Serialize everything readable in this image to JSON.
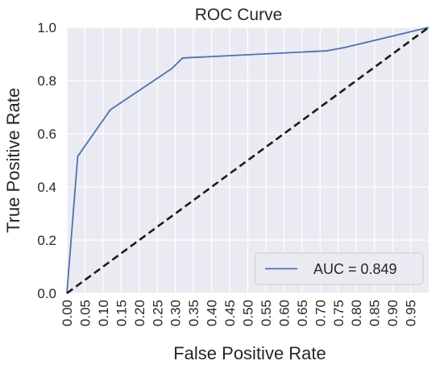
{
  "chart_data": {
    "type": "line",
    "title": "ROC Curve",
    "xlabel": "False Positive Rate",
    "ylabel": "True Positive Rate",
    "xlim": [
      0,
      1
    ],
    "ylim": [
      0,
      1
    ],
    "grid": true,
    "legend_position": "bottom-right",
    "x_ticks": [
      "0.00",
      "0.05",
      "0.10",
      "0.15",
      "0.20",
      "0.25",
      "0.30",
      "0.35",
      "0.40",
      "0.45",
      "0.50",
      "0.55",
      "0.60",
      "0.65",
      "0.70",
      "0.75",
      "0.80",
      "0.85",
      "0.90",
      "0.95"
    ],
    "y_ticks": [
      "0.0",
      "0.2",
      "0.4",
      "0.6",
      "0.8",
      "1.0"
    ],
    "series": [
      {
        "name": "AUC = 0.849",
        "color": "#4c72b0",
        "style": "solid",
        "x": [
          0.0,
          0.03,
          0.12,
          0.29,
          0.32,
          0.72,
          0.77,
          1.0
        ],
        "y": [
          0.0,
          0.515,
          0.69,
          0.845,
          0.885,
          0.912,
          0.925,
          1.0
        ]
      },
      {
        "color": "#1a1a1a",
        "style": "dashed",
        "x": [
          0.0,
          1.0
        ],
        "y": [
          0.0,
          1.0
        ]
      }
    ]
  }
}
